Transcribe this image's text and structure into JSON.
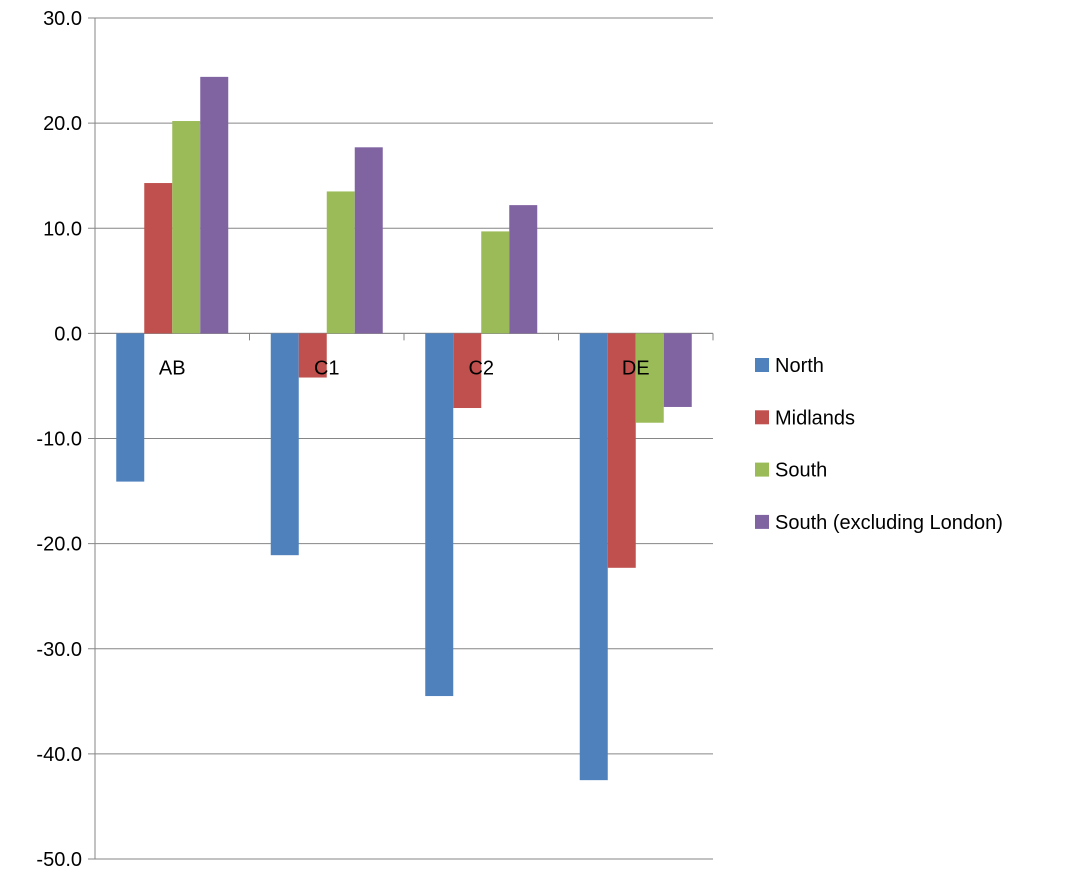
{
  "chart_data": {
    "type": "bar",
    "categories": [
      "AB",
      "C1",
      "C2",
      "DE"
    ],
    "series": [
      {
        "name": "North",
        "color": "#4F81BD",
        "values": [
          -14.1,
          -21.1,
          -34.5,
          -42.5
        ]
      },
      {
        "name": "Midlands",
        "color": "#C0504D",
        "values": [
          14.3,
          -4.2,
          -7.1,
          -22.3
        ]
      },
      {
        "name": "South",
        "color": "#9BBB59",
        "values": [
          20.2,
          13.5,
          9.7,
          -8.5
        ]
      },
      {
        "name": "South (excluding London)",
        "color": "#8064A2",
        "values": [
          24.4,
          17.7,
          12.2,
          -7.0
        ]
      }
    ],
    "ylim": [
      -50,
      30
    ],
    "yticks": [
      "30.0",
      "20.0",
      "10.0",
      "0.0",
      "-10.0",
      "-20.0",
      "-30.0",
      "-40.0",
      "-50.0"
    ],
    "ytick_values": [
      30,
      20,
      10,
      0,
      -10,
      -20,
      -30,
      -40,
      -50
    ],
    "grid": true,
    "legend_position": "right",
    "title": "",
    "xlabel": "",
    "ylabel": ""
  }
}
